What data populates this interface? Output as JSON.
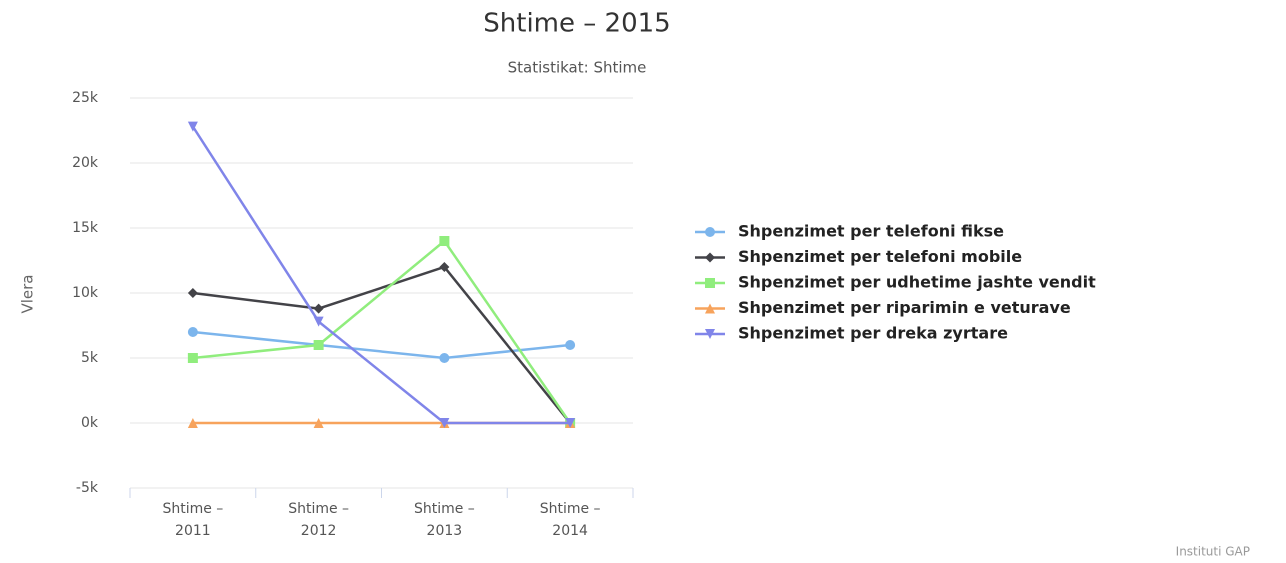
{
  "chart_data": {
    "type": "line",
    "title": "Shtime – 2015",
    "subtitle": "Statistikat: Shtime",
    "y_axis_label": "Vlera",
    "credit": "Instituti GAP",
    "categories": [
      "Shtime – 2011",
      "Shtime – 2012",
      "Shtime – 2013",
      "Shtime – 2014"
    ],
    "ylim": [
      -5000,
      25000
    ],
    "yticks": [
      {
        "value": -5000,
        "label": "-5k"
      },
      {
        "value": 0,
        "label": "0k"
      },
      {
        "value": 5000,
        "label": "5k"
      },
      {
        "value": 10000,
        "label": "10k"
      },
      {
        "value": 15000,
        "label": "15k"
      },
      {
        "value": 20000,
        "label": "20k"
      },
      {
        "value": 25000,
        "label": "25k"
      }
    ],
    "grid": true,
    "legend": "right",
    "series": [
      {
        "name": "Shpenzimet per telefoni fikse",
        "color": "#7cb5ec",
        "marker": "circle",
        "values": [
          7000,
          6000,
          5000,
          6000
        ]
      },
      {
        "name": "Shpenzimet per telefoni mobile",
        "color": "#434348",
        "marker": "diamond",
        "values": [
          10000,
          8800,
          12000,
          0
        ]
      },
      {
        "name": "Shpenzimet per udhetime jashte vendit",
        "color": "#90ed7d",
        "marker": "square",
        "values": [
          5000,
          6000,
          14000,
          0
        ]
      },
      {
        "name": "Shpenzimet per riparimin e veturave",
        "color": "#f7a35c",
        "marker": "triangle",
        "values": [
          0,
          0,
          0,
          0
        ]
      },
      {
        "name": "Shpenzimet per dreka zyrtare",
        "color": "#8085e9",
        "marker": "triangle-down",
        "values": [
          22800,
          7800,
          0,
          0
        ]
      }
    ]
  }
}
